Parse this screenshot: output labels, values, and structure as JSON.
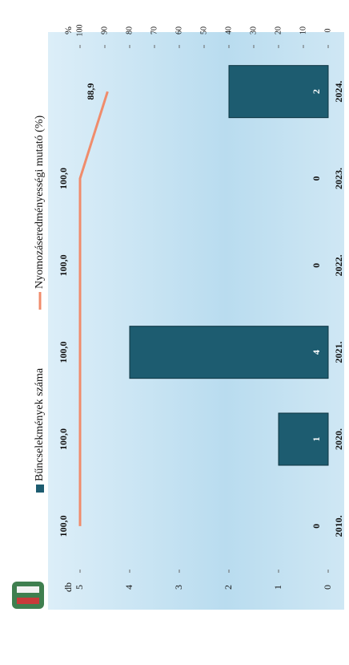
{
  "chart_data": {
    "type": "bar-line",
    "categories": [
      "2010.",
      "2020.",
      "2021.",
      "2022.",
      "2023.",
      "2024."
    ],
    "series": [
      {
        "name": "Bűncselekmények száma",
        "type": "bar",
        "color": "#1d5c70",
        "values": [
          0,
          1,
          4,
          0,
          0,
          2
        ]
      },
      {
        "name": "Nyomozáseredményességi mutató (%)",
        "type": "line",
        "axis": "y2",
        "color": "#f08c6c",
        "values": [
          100,
          100,
          100,
          100,
          100,
          88.9
        ],
        "value_labels": [
          "100,0",
          "100,0",
          "100,0",
          "100,0",
          "100,0",
          "88,9"
        ]
      }
    ],
    "ylabel": "db",
    "y2label": "%",
    "ylim": [
      0,
      5
    ],
    "yticks": [
      0,
      1,
      2,
      3,
      4,
      5
    ],
    "y2lim": [
      0,
      100
    ],
    "y2ticks": [
      0,
      10,
      20,
      30,
      40,
      50,
      60,
      70,
      80,
      90,
      100
    ]
  }
}
